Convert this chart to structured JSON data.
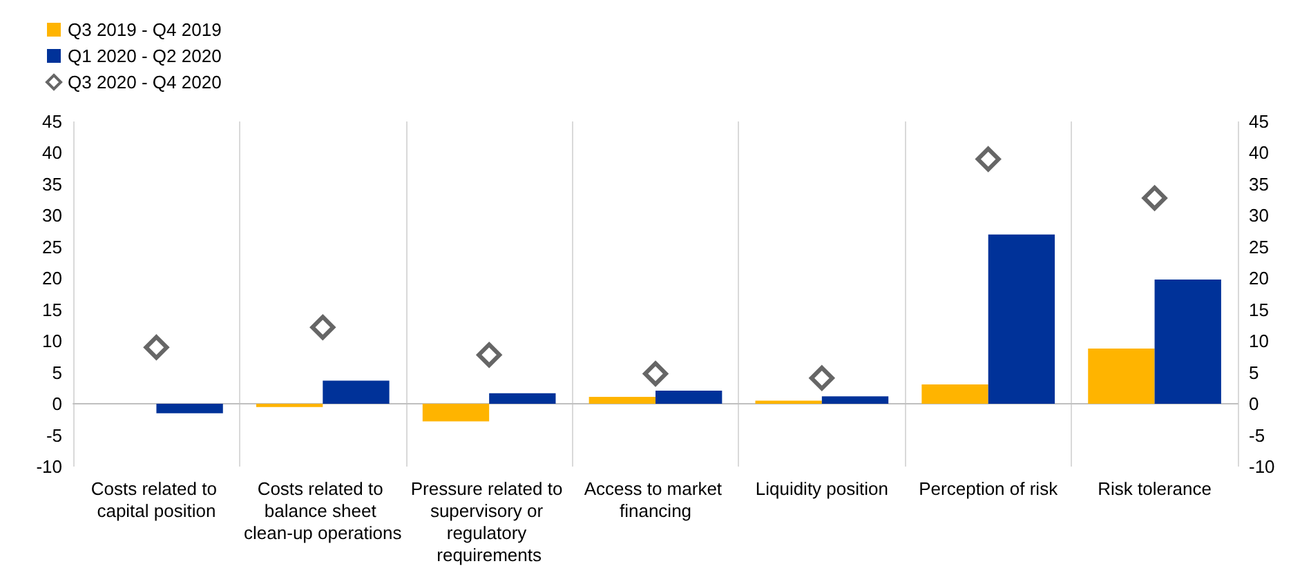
{
  "chart_data": {
    "type": "bar",
    "categories": [
      "Costs related to capital position",
      "Costs related to balance sheet clean-up operations",
      "Pressure related to supervisory or regulatory requirements",
      "Access to market financing",
      "Liquidity position",
      "Perception of risk",
      "Risk tolerance"
    ],
    "series": [
      {
        "name": "Q3 2019 - Q4 2019",
        "color": "#ffb400",
        "values": [
          0,
          -0.5,
          -2.8,
          1.1,
          0.5,
          3.1,
          8.8
        ]
      },
      {
        "name": "Q1 2020 - Q2 2020",
        "color": "#003299",
        "values": [
          -1.5,
          3.7,
          1.7,
          2.1,
          1.2,
          27,
          19.8
        ]
      },
      {
        "name": "Q3 2020 - Q4 2020",
        "type": "scatter",
        "marker": "diamond",
        "color": "#404040",
        "values": [
          9,
          12.2,
          7.8,
          4.8,
          4.1,
          39,
          32.8
        ]
      }
    ],
    "ylim": [
      -10,
      45
    ],
    "yticks": [
      -10,
      -5,
      0,
      5,
      10,
      15,
      20,
      25,
      30,
      35,
      40,
      45
    ],
    "y2lim": [
      -10,
      45
    ],
    "y2ticks": [
      -10,
      -5,
      0,
      5,
      10,
      15,
      20,
      25,
      30,
      35,
      40,
      45
    ],
    "grid": "x",
    "legend": "top left"
  }
}
